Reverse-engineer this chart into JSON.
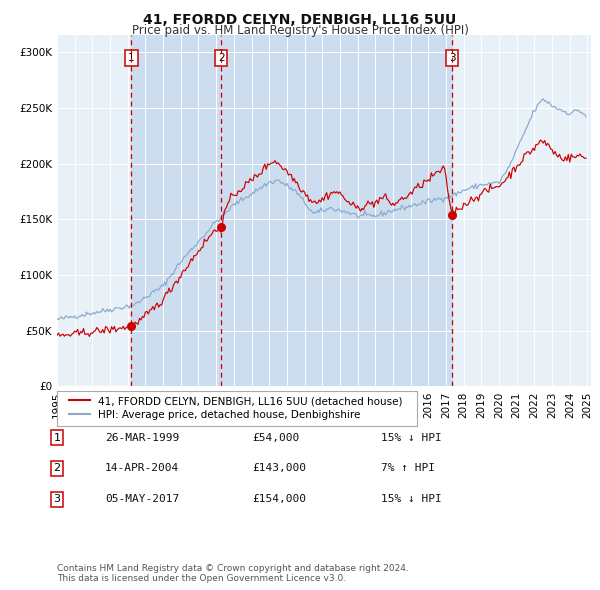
{
  "title": "41, FFORDD CELYN, DENBIGH, LL16 5UU",
  "subtitle": "Price paid vs. HM Land Registry's House Price Index (HPI)",
  "ylim": [
    0,
    315000
  ],
  "yticks": [
    0,
    50000,
    100000,
    150000,
    200000,
    250000,
    300000
  ],
  "ytick_labels": [
    "£0",
    "£50K",
    "£100K",
    "£150K",
    "£200K",
    "£250K",
    "£300K"
  ],
  "x_start_year": 1995,
  "x_end_year": 2025,
  "background_color": "#ffffff",
  "plot_bg_color": "#e8f0f8",
  "grid_color": "#ffffff",
  "transactions": [
    {
      "label": "1",
      "date_decimal": 1999.21,
      "price": 54000
    },
    {
      "label": "2",
      "date_decimal": 2004.29,
      "price": 143000
    },
    {
      "label": "3",
      "date_decimal": 2017.34,
      "price": 154000
    }
  ],
  "vline_color": "#cc0000",
  "shade_color": "#ccddf0",
  "red_line_color": "#cc0000",
  "blue_line_color": "#88aacc",
  "legend_red_label": "41, FFORDD CELYN, DENBIGH, LL16 5UU (detached house)",
  "legend_blue_label": "HPI: Average price, detached house, Denbighshire",
  "table_rows": [
    {
      "num": "1",
      "date": "26-MAR-1999",
      "price": "£54,000",
      "hpi": "15% ↓ HPI"
    },
    {
      "num": "2",
      "date": "14-APR-2004",
      "price": "£143,000",
      "hpi": "7% ↑ HPI"
    },
    {
      "num": "3",
      "date": "05-MAY-2017",
      "price": "£154,000",
      "hpi": "15% ↓ HPI"
    }
  ],
  "footnote": "Contains HM Land Registry data © Crown copyright and database right 2024.\nThis data is licensed under the Open Government Licence v3.0.",
  "title_fontsize": 10,
  "subtitle_fontsize": 8.5,
  "tick_fontsize": 7.5,
  "legend_fontsize": 7.5,
  "table_fontsize": 8,
  "footnote_fontsize": 6.5
}
